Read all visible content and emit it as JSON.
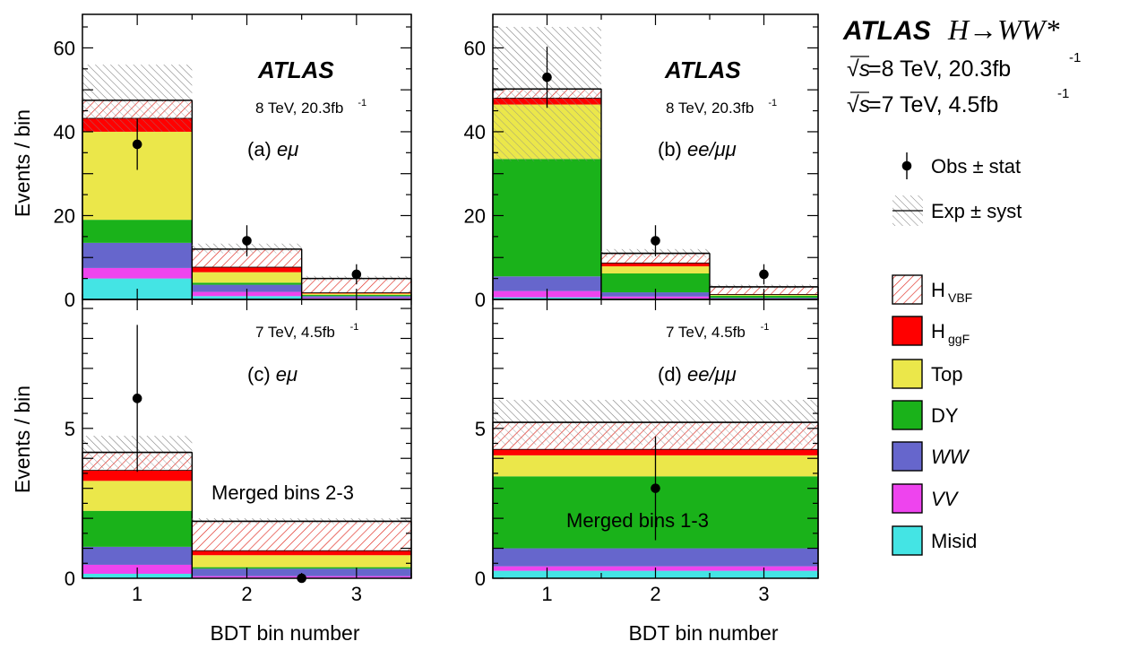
{
  "figure": {
    "experiment": "ATLAS",
    "process": "H→WW*",
    "sqrt_s_label": "√s",
    "lumi_8": "=8 TeV, 20.3fb",
    "lumi_7": "=7 TeV, 4.5fb",
    "lumi_exp": "-1",
    "xlabel": "BDT bin number",
    "ylabel": "Events / bin"
  },
  "legend": {
    "items": [
      {
        "key": "obs",
        "label": "Obs ± stat"
      },
      {
        "key": "exp",
        "label": "Exp ± syst"
      },
      {
        "key": "hvbf",
        "label": "H",
        "sub": "VBF",
        "color": "#ffffff",
        "hatch": "#e0281e"
      },
      {
        "key": "hggf",
        "label": "H",
        "sub": "ggF",
        "color": "#ff0000"
      },
      {
        "key": "top",
        "label": "Top",
        "color": "#ebe74a"
      },
      {
        "key": "dy",
        "label": "DY",
        "color": "#1ab21a"
      },
      {
        "key": "ww",
        "label": "WW",
        "italic": true,
        "color": "#6666cc"
      },
      {
        "key": "vv",
        "label": "VV",
        "italic": true,
        "color": "#ee44ee"
      },
      {
        "key": "misid",
        "label": "Misid",
        "color": "#44e4e4"
      }
    ]
  },
  "chart_data": [
    {
      "panel": "a",
      "type": "bar",
      "stacked": true,
      "atlas": "ATLAS",
      "energy": "8 TeV, 20.3fb",
      "energy_exp": "-1",
      "channel_tag": "(a)",
      "channel": "eμ",
      "ylim": [
        0,
        68
      ],
      "yticks": [
        0,
        20,
        40,
        60
      ],
      "bins": [
        {
          "x": 1,
          "misid": 5,
          "vv": 2.5,
          "ww": 6,
          "dy": 5.5,
          "top": 21,
          "hggf": 3.2,
          "hvbf": 4.3,
          "total": 47.5,
          "syst_up": 56,
          "syst_down": 40
        },
        {
          "x": 2,
          "misid": 0.8,
          "vv": 1,
          "ww": 1.7,
          "dy": 0.5,
          "top": 2.5,
          "hggf": 1.2,
          "hvbf": 4.3,
          "total": 12,
          "syst_up": 13.3,
          "syst_down": 11
        },
        {
          "x": 3,
          "misid": 0.2,
          "vv": 0.2,
          "ww": 0.4,
          "dy": 0.3,
          "top": 0.3,
          "hggf": 0.2,
          "hvbf": 3.4,
          "total": 5,
          "syst_up": 5.6,
          "syst_down": 4.4
        }
      ],
      "observed": [
        {
          "x": 1,
          "y": 37,
          "err": 6.1
        },
        {
          "x": 2,
          "y": 14,
          "err": 3.7
        },
        {
          "x": 3,
          "y": 6,
          "err": 2.4
        }
      ]
    },
    {
      "panel": "b",
      "type": "bar",
      "stacked": true,
      "atlas": "ATLAS",
      "energy": "8 TeV, 20.3fb",
      "energy_exp": "-1",
      "channel_tag": "(b)",
      "channel": "ee/μμ",
      "ylim": [
        0,
        68
      ],
      "yticks": [
        0,
        20,
        40,
        60
      ],
      "bins": [
        {
          "x": 1,
          "misid": 0.5,
          "vv": 1.5,
          "ww": 3.5,
          "dy": 28,
          "top": 13,
          "hggf": 1.5,
          "hvbf": 2.2,
          "total": 50.2,
          "syst_up": 65,
          "syst_down": 33
        },
        {
          "x": 2,
          "misid": 0.2,
          "vv": 0.5,
          "ww": 1,
          "dy": 4.5,
          "top": 1.7,
          "hggf": 0.8,
          "hvbf": 2.3,
          "total": 11,
          "syst_up": 12,
          "syst_down": 10
        },
        {
          "x": 3,
          "misid": 0.1,
          "vv": 0.1,
          "ww": 0.2,
          "dy": 0.5,
          "top": 0.2,
          "hggf": 0.1,
          "hvbf": 1.8,
          "total": 3,
          "syst_up": 3.5,
          "syst_down": 2.5
        }
      ],
      "observed": [
        {
          "x": 1,
          "y": 53,
          "err": 7.3
        },
        {
          "x": 2,
          "y": 14,
          "err": 3.7
        },
        {
          "x": 3,
          "y": 6,
          "err": 2.4
        }
      ]
    },
    {
      "panel": "c",
      "type": "bar",
      "stacked": true,
      "energy": "7 TeV, 4.5fb",
      "energy_exp": "-1",
      "channel_tag": "(c)",
      "channel": "eμ",
      "merged": "Merged bins 2-3",
      "ylim": [
        0,
        9.3
      ],
      "yticks": [
        0,
        5
      ],
      "bins": [
        {
          "x_range": [
            0.5,
            1.5
          ],
          "misid": 0.15,
          "vv": 0.3,
          "ww": 0.6,
          "dy": 1.2,
          "top": 1.0,
          "hggf": 0.35,
          "hvbf": 0.6,
          "total": 4.2,
          "syst_up": 4.75,
          "syst_down": 3.65
        },
        {
          "x_range": [
            1.5,
            3.5
          ],
          "misid": 0.02,
          "vv": 0.05,
          "ww": 0.25,
          "dy": 0.05,
          "top": 0.4,
          "hggf": 0.15,
          "hvbf": 0.98,
          "total": 1.9,
          "syst_up": 2.0,
          "syst_down": 1.8
        }
      ],
      "observed": [
        {
          "x": 1,
          "y": 6,
          "err": 2.45
        },
        {
          "x": 2.5,
          "y": 0,
          "err": 0
        }
      ]
    },
    {
      "panel": "d",
      "type": "bar",
      "stacked": true,
      "energy": "7 TeV, 4.5fb",
      "energy_exp": "-1",
      "channel_tag": "(d)",
      "channel": "ee/μμ",
      "merged": "Merged bins 1-3",
      "ylim": [
        0,
        9.3
      ],
      "yticks": [
        0,
        5
      ],
      "bins": [
        {
          "x_range": [
            0.5,
            3.5
          ],
          "misid": 0.25,
          "vv": 0.15,
          "ww": 0.6,
          "dy": 2.4,
          "top": 0.7,
          "hggf": 0.2,
          "hvbf": 0.9,
          "total": 5.2,
          "syst_up": 5.95,
          "syst_down": 4.45
        }
      ],
      "observed": [
        {
          "x": 2,
          "y": 3,
          "err": 1.73
        }
      ]
    }
  ]
}
